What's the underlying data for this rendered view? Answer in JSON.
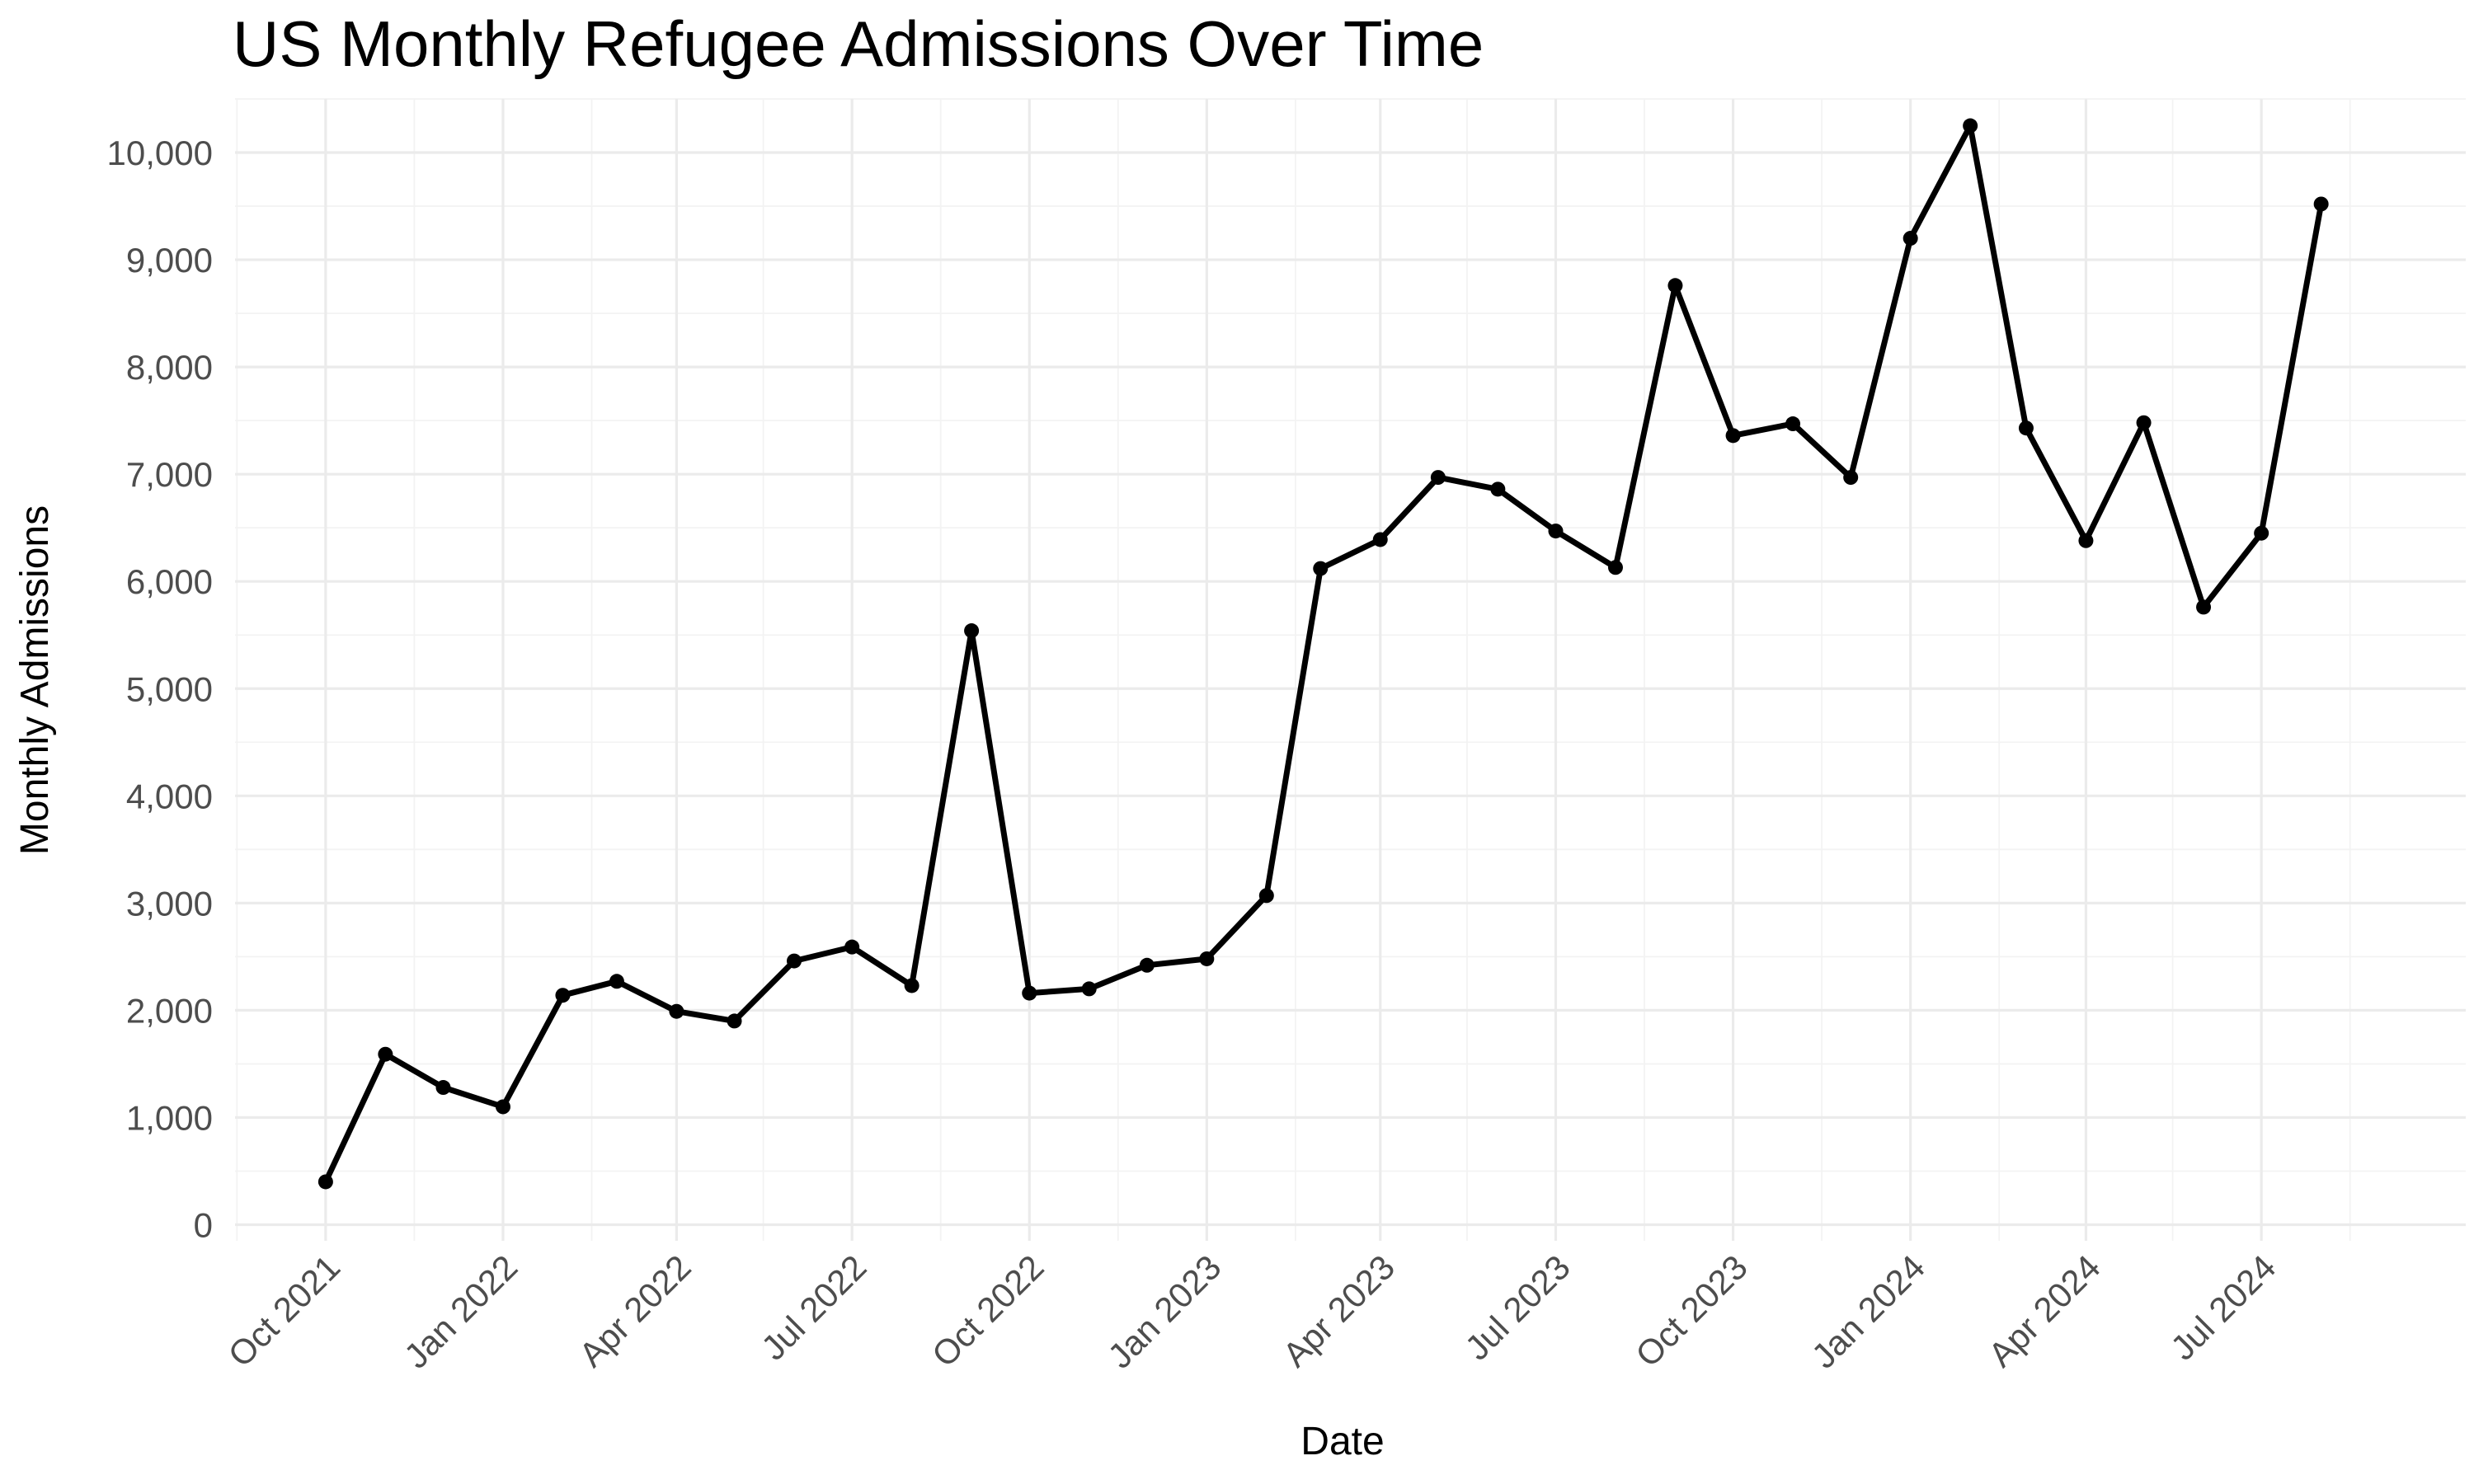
{
  "chart_data": {
    "type": "line",
    "title": "US Monthly Refugee Admissions Over Time",
    "xlabel": "Date",
    "ylabel": "Monthly Admissions",
    "ylim": [
      0,
      10500
    ],
    "y_ticks": [
      0,
      1000,
      2000,
      3000,
      4000,
      5000,
      6000,
      7000,
      8000,
      9000,
      10000
    ],
    "y_tick_labels": [
      "0",
      "1,000",
      "2,000",
      "3,000",
      "4,000",
      "5,000",
      "6,000",
      "7,000",
      "8,000",
      "9,000",
      "10,000"
    ],
    "x_ticks": [
      "2021-10-01",
      "2022-01-01",
      "2022-04-01",
      "2022-07-01",
      "2022-10-01",
      "2023-01-01",
      "2023-04-01",
      "2023-07-01",
      "2023-10-01",
      "2024-01-01",
      "2024-04-01",
      "2024-07-01"
    ],
    "x_tick_labels": [
      "Oct 2021",
      "Jan 2022",
      "Apr 2022",
      "Jul 2022",
      "Oct 2022",
      "Jan 2023",
      "Apr 2023",
      "Jul 2023",
      "Oct 2023",
      "Jan 2024",
      "Apr 2024",
      "Jul 2024"
    ],
    "grid": true,
    "legend": "none",
    "line_color": "#000000",
    "series": [
      {
        "x": [
          "2021-10-01",
          "2021-11-01",
          "2021-12-01",
          "2022-01-01",
          "2022-02-01",
          "2022-03-01",
          "2022-04-01",
          "2022-05-01",
          "2022-06-01",
          "2022-07-01",
          "2022-08-01",
          "2022-09-01",
          "2022-10-01",
          "2022-11-01",
          "2022-12-01",
          "2023-01-01",
          "2023-02-01",
          "2023-03-01",
          "2023-04-01",
          "2023-05-01",
          "2023-06-01",
          "2023-07-01",
          "2023-08-01",
          "2023-09-01",
          "2023-10-01",
          "2023-11-01",
          "2023-12-01",
          "2024-01-01",
          "2024-02-01",
          "2024-03-01",
          "2024-04-01",
          "2024-05-01",
          "2024-06-01",
          "2024-07-01",
          "2024-08-01"
        ],
        "values": [
          400,
          1590,
          1280,
          1100,
          2140,
          2270,
          1990,
          1900,
          2460,
          2590,
          2230,
          5540,
          2160,
          2200,
          2420,
          2480,
          3070,
          6120,
          6390,
          6970,
          6860,
          6470,
          6130,
          8760,
          7360,
          7470,
          6970,
          9200,
          10250,
          7430,
          6380,
          7480,
          5760,
          6450,
          9520
        ]
      }
    ]
  }
}
